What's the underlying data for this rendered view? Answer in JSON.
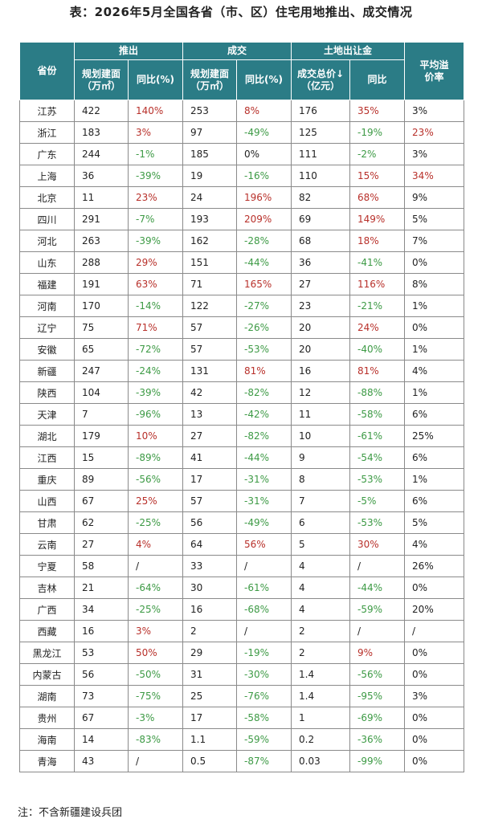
{
  "title": "表：2026年5月全国各省（市、区）住宅用地推出、成交情况",
  "header": {
    "province": "省份",
    "group_launch": "推出",
    "group_deal": "成交",
    "group_revenue": "土地出让金",
    "avg_premium": "平均溢价率",
    "plan_area": "规划建面（万㎡）",
    "yoy": "同比(%)",
    "yoy2": "同比",
    "total_price": "成交总价↓（亿元）"
  },
  "rows": [
    {
      "p": "江苏",
      "a": "422",
      "ay": "140%",
      "ad": "up",
      "b": "253",
      "by": "8%",
      "bd": "up",
      "c": "176",
      "cy": "35%",
      "cd": "up",
      "r": "3%",
      "rd": "neutral"
    },
    {
      "p": "浙江",
      "a": "183",
      "ay": "3%",
      "ad": "up",
      "b": "97",
      "by": "-49%",
      "bd": "down",
      "c": "125",
      "cy": "-19%",
      "cd": "down",
      "r": "23%",
      "rd": "up"
    },
    {
      "p": "广东",
      "a": "244",
      "ay": "-1%",
      "ad": "down",
      "b": "185",
      "by": "0%",
      "bd": "neutral",
      "c": "111",
      "cy": "-2%",
      "cd": "down",
      "r": "3%",
      "rd": "neutral"
    },
    {
      "p": "上海",
      "a": "36",
      "ay": "-39%",
      "ad": "down",
      "b": "19",
      "by": "-16%",
      "bd": "down",
      "c": "110",
      "cy": "15%",
      "cd": "up",
      "r": "34%",
      "rd": "up"
    },
    {
      "p": "北京",
      "a": "11",
      "ay": "23%",
      "ad": "up",
      "b": "24",
      "by": "196%",
      "bd": "up",
      "c": "82",
      "cy": "68%",
      "cd": "up",
      "r": "9%",
      "rd": "neutral"
    },
    {
      "p": "四川",
      "a": "291",
      "ay": "-7%",
      "ad": "down",
      "b": "193",
      "by": "209%",
      "bd": "up",
      "c": "69",
      "cy": "149%",
      "cd": "up",
      "r": "5%",
      "rd": "neutral"
    },
    {
      "p": "河北",
      "a": "263",
      "ay": "-39%",
      "ad": "down",
      "b": "162",
      "by": "-28%",
      "bd": "down",
      "c": "68",
      "cy": "18%",
      "cd": "up",
      "r": "7%",
      "rd": "neutral"
    },
    {
      "p": "山东",
      "a": "288",
      "ay": "29%",
      "ad": "up",
      "b": "151",
      "by": "-44%",
      "bd": "down",
      "c": "36",
      "cy": "-41%",
      "cd": "down",
      "r": "0%",
      "rd": "neutral"
    },
    {
      "p": "福建",
      "a": "191",
      "ay": "63%",
      "ad": "up",
      "b": "71",
      "by": "165%",
      "bd": "up",
      "c": "27",
      "cy": "116%",
      "cd": "up",
      "r": "8%",
      "rd": "neutral"
    },
    {
      "p": "河南",
      "a": "170",
      "ay": "-14%",
      "ad": "down",
      "b": "122",
      "by": "-27%",
      "bd": "down",
      "c": "23",
      "cy": "-21%",
      "cd": "down",
      "r": "1%",
      "rd": "neutral"
    },
    {
      "p": "辽宁",
      "a": "75",
      "ay": "71%",
      "ad": "up",
      "b": "57",
      "by": "-26%",
      "bd": "down",
      "c": "20",
      "cy": "24%",
      "cd": "up",
      "r": "0%",
      "rd": "neutral"
    },
    {
      "p": "安徽",
      "a": "65",
      "ay": "-72%",
      "ad": "down",
      "b": "57",
      "by": "-53%",
      "bd": "down",
      "c": "20",
      "cy": "-40%",
      "cd": "down",
      "r": "1%",
      "rd": "neutral"
    },
    {
      "p": "新疆",
      "a": "247",
      "ay": "-24%",
      "ad": "down",
      "b": "131",
      "by": "81%",
      "bd": "up",
      "c": "16",
      "cy": "81%",
      "cd": "up",
      "r": "4%",
      "rd": "neutral"
    },
    {
      "p": "陕西",
      "a": "104",
      "ay": "-39%",
      "ad": "down",
      "b": "42",
      "by": "-82%",
      "bd": "down",
      "c": "12",
      "cy": "-88%",
      "cd": "down",
      "r": "1%",
      "rd": "neutral"
    },
    {
      "p": "天津",
      "a": "7",
      "ay": "-96%",
      "ad": "down",
      "b": "13",
      "by": "-42%",
      "bd": "down",
      "c": "11",
      "cy": "-58%",
      "cd": "down",
      "r": "6%",
      "rd": "neutral"
    },
    {
      "p": "湖北",
      "a": "179",
      "ay": "10%",
      "ad": "up",
      "b": "27",
      "by": "-82%",
      "bd": "down",
      "c": "10",
      "cy": "-61%",
      "cd": "down",
      "r": "25%",
      "rd": "neutral"
    },
    {
      "p": "江西",
      "a": "15",
      "ay": "-89%",
      "ad": "down",
      "b": "41",
      "by": "-44%",
      "bd": "down",
      "c": "9",
      "cy": "-54%",
      "cd": "down",
      "r": "6%",
      "rd": "neutral"
    },
    {
      "p": "重庆",
      "a": "89",
      "ay": "-56%",
      "ad": "down",
      "b": "17",
      "by": "-31%",
      "bd": "down",
      "c": "8",
      "cy": "-53%",
      "cd": "down",
      "r": "1%",
      "rd": "neutral"
    },
    {
      "p": "山西",
      "a": "67",
      "ay": "25%",
      "ad": "up",
      "b": "57",
      "by": "-31%",
      "bd": "down",
      "c": "7",
      "cy": "-5%",
      "cd": "down",
      "r": "6%",
      "rd": "neutral"
    },
    {
      "p": "甘肃",
      "a": "62",
      "ay": "-25%",
      "ad": "down",
      "b": "56",
      "by": "-49%",
      "bd": "down",
      "c": "6",
      "cy": "-53%",
      "cd": "down",
      "r": "5%",
      "rd": "neutral"
    },
    {
      "p": "云南",
      "a": "27",
      "ay": "4%",
      "ad": "up",
      "b": "64",
      "by": "56%",
      "bd": "up",
      "c": "5",
      "cy": "30%",
      "cd": "up",
      "r": "4%",
      "rd": "neutral"
    },
    {
      "p": "宁夏",
      "a": "58",
      "ay": "/",
      "ad": "neutral",
      "b": "33",
      "by": "/",
      "bd": "neutral",
      "c": "4",
      "cy": "/",
      "cd": "neutral",
      "r": "26%",
      "rd": "neutral"
    },
    {
      "p": "吉林",
      "a": "21",
      "ay": "-64%",
      "ad": "down",
      "b": "30",
      "by": "-61%",
      "bd": "down",
      "c": "4",
      "cy": "-44%",
      "cd": "down",
      "r": "0%",
      "rd": "neutral"
    },
    {
      "p": "广西",
      "a": "34",
      "ay": "-25%",
      "ad": "down",
      "b": "16",
      "by": "-68%",
      "bd": "down",
      "c": "4",
      "cy": "-59%",
      "cd": "down",
      "r": "20%",
      "rd": "neutral"
    },
    {
      "p": "西藏",
      "a": "16",
      "ay": "3%",
      "ad": "up",
      "b": "2",
      "by": "/",
      "bd": "neutral",
      "c": "2",
      "cy": "/",
      "cd": "neutral",
      "r": "/",
      "rd": "neutral"
    },
    {
      "p": "黑龙江",
      "a": "53",
      "ay": "50%",
      "ad": "up",
      "b": "29",
      "by": "-19%",
      "bd": "down",
      "c": "2",
      "cy": "9%",
      "cd": "up",
      "r": "0%",
      "rd": "neutral"
    },
    {
      "p": "内蒙古",
      "a": "56",
      "ay": "-50%",
      "ad": "down",
      "b": "31",
      "by": "-30%",
      "bd": "down",
      "c": "1.4",
      "cy": "-56%",
      "cd": "down",
      "r": "0%",
      "rd": "neutral"
    },
    {
      "p": "湖南",
      "a": "73",
      "ay": "-75%",
      "ad": "down",
      "b": "25",
      "by": "-76%",
      "bd": "down",
      "c": "1.4",
      "cy": "-95%",
      "cd": "down",
      "r": "3%",
      "rd": "neutral"
    },
    {
      "p": "贵州",
      "a": "67",
      "ay": "-3%",
      "ad": "down",
      "b": "17",
      "by": "-58%",
      "bd": "down",
      "c": "1",
      "cy": "-69%",
      "cd": "down",
      "r": "0%",
      "rd": "neutral"
    },
    {
      "p": "海南",
      "a": "14",
      "ay": "-83%",
      "ad": "down",
      "b": "1.1",
      "by": "-59%",
      "bd": "down",
      "c": "0.2",
      "cy": "-36%",
      "cd": "down",
      "r": "0%",
      "rd": "neutral"
    },
    {
      "p": "青海",
      "a": "43",
      "ay": "/",
      "ad": "neutral",
      "b": "0.5",
      "by": "-87%",
      "bd": "down",
      "c": "0.03",
      "cy": "-99%",
      "cd": "down",
      "r": "0%",
      "rd": "neutral"
    }
  ],
  "note": "注：不含新疆建设兵团",
  "colors": {
    "header_bg": "#2b7c86",
    "up": "#b8302a",
    "down": "#3d9a45"
  }
}
